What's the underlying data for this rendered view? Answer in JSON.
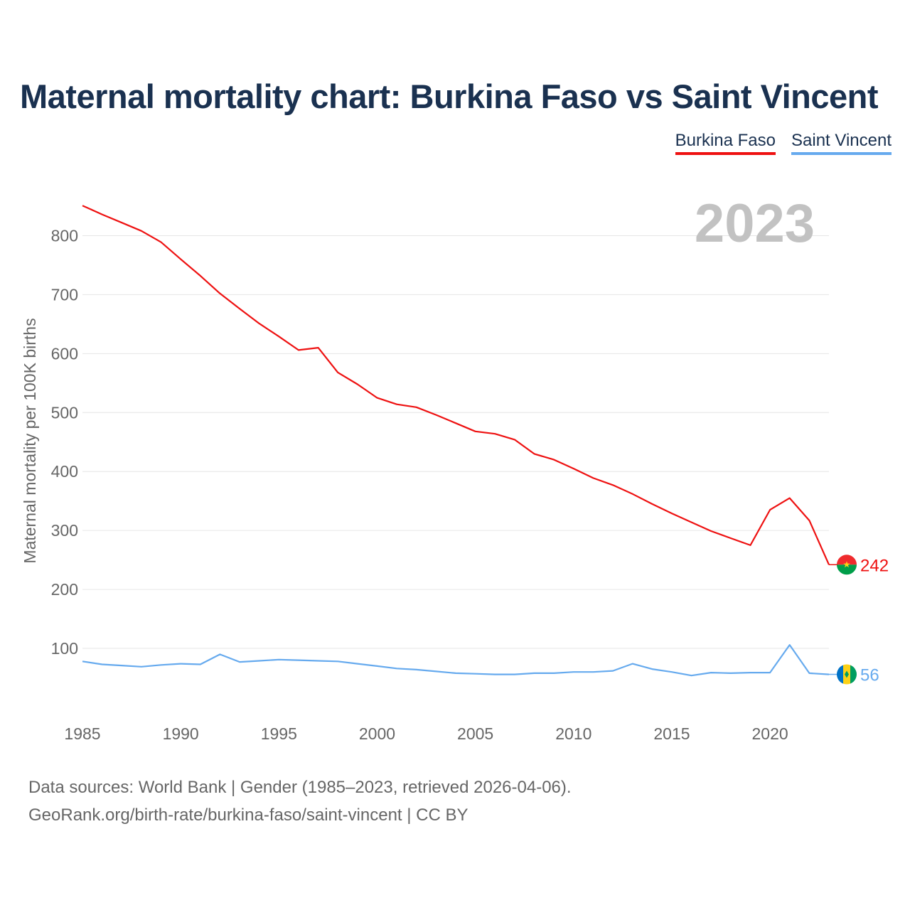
{
  "title": "Maternal mortality chart: Burkina Faso vs Saint Vincent",
  "year_label": "2023",
  "legend": [
    {
      "name": "Burkina Faso",
      "color": "#ee1111"
    },
    {
      "name": "Saint Vincent",
      "color": "#66aaee"
    }
  ],
  "sources": {
    "line1": "Data sources: World Bank | Gender (1985–2023, retrieved 2026-04-06).",
    "line2": "GeoRank.org/birth-rate/burkina-faso/saint-vincent | CC BY"
  },
  "chart_data": {
    "type": "line",
    "title": "Maternal mortality chart: Burkina Faso vs Saint Vincent",
    "xlabel": "",
    "ylabel": "Maternal mortality per 100K births",
    "xlim": [
      1985,
      2023
    ],
    "ylim": [
      0,
      850
    ],
    "x_ticks": [
      1985,
      1990,
      1995,
      2000,
      2005,
      2010,
      2015,
      2020
    ],
    "y_ticks": [
      100,
      200,
      300,
      400,
      500,
      600,
      700,
      800
    ],
    "grid": true,
    "x": [
      1985,
      1986,
      1987,
      1988,
      1989,
      1990,
      1991,
      1992,
      1993,
      1994,
      1995,
      1996,
      1997,
      1998,
      1999,
      2000,
      2001,
      2002,
      2003,
      2004,
      2005,
      2006,
      2007,
      2008,
      2009,
      2010,
      2011,
      2012,
      2013,
      2014,
      2015,
      2016,
      2017,
      2018,
      2019,
      2020,
      2021,
      2022,
      2023
    ],
    "series": [
      {
        "name": "Burkina Faso",
        "color": "#ee1111",
        "flag": "burkina-faso-flag",
        "end_label": "242",
        "values": [
          851,
          836,
          822,
          808,
          789,
          760,
          732,
          702,
          676,
          651,
          629,
          606,
          610,
          568,
          548,
          525,
          514,
          509,
          496,
          482,
          468,
          464,
          454,
          430,
          420,
          405,
          389,
          377,
          362,
          345,
          329,
          314,
          299,
          287,
          275,
          335,
          355,
          317,
          242
        ]
      },
      {
        "name": "Saint Vincent",
        "color": "#66aaee",
        "flag": "saint-vincent-flag",
        "end_label": "56",
        "values": [
          78,
          73,
          71,
          69,
          72,
          74,
          73,
          90,
          77,
          79,
          81,
          80,
          79,
          78,
          74,
          70,
          66,
          64,
          61,
          58,
          57,
          56,
          56,
          58,
          58,
          60,
          60,
          62,
          74,
          65,
          60,
          54,
          59,
          58,
          59,
          59,
          106,
          58,
          56
        ]
      }
    ]
  }
}
